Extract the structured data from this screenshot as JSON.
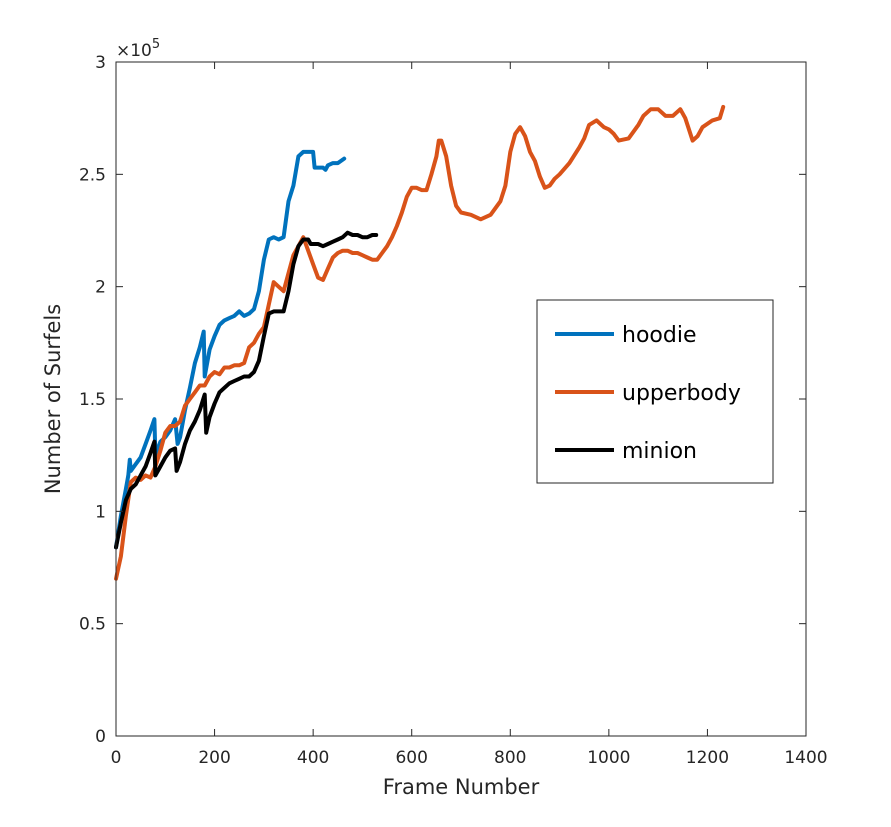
{
  "chart_data": {
    "type": "line",
    "xlabel": "Frame Number",
    "ylabel": "Number of Surfels",
    "xlim": [
      0,
      1400
    ],
    "ylim": [
      0,
      3
    ],
    "y_exponent_label": "×10",
    "y_exponent_power": "5",
    "x_ticks": [
      "0",
      "200",
      "400",
      "600",
      "800",
      "1000",
      "1200",
      "1400"
    ],
    "y_ticks": [
      "0",
      "0.5",
      "1",
      "1.5",
      "2",
      "2.5",
      "3"
    ],
    "legend_position": "right",
    "series": [
      {
        "name": "hoodie",
        "color": "#0072BD",
        "points": [
          [
            0,
            0.84
          ],
          [
            10,
            0.98
          ],
          [
            20,
            1.1
          ],
          [
            25,
            1.16
          ],
          [
            28,
            1.23
          ],
          [
            30,
            1.18
          ],
          [
            40,
            1.21
          ],
          [
            50,
            1.24
          ],
          [
            60,
            1.3
          ],
          [
            70,
            1.36
          ],
          [
            78,
            1.41
          ],
          [
            80,
            1.25
          ],
          [
            90,
            1.31
          ],
          [
            100,
            1.33
          ],
          [
            110,
            1.36
          ],
          [
            120,
            1.41
          ],
          [
            125,
            1.3
          ],
          [
            130,
            1.33
          ],
          [
            140,
            1.45
          ],
          [
            150,
            1.55
          ],
          [
            160,
            1.66
          ],
          [
            170,
            1.73
          ],
          [
            178,
            1.8
          ],
          [
            180,
            1.6
          ],
          [
            190,
            1.72
          ],
          [
            200,
            1.78
          ],
          [
            210,
            1.83
          ],
          [
            220,
            1.85
          ],
          [
            230,
            1.86
          ],
          [
            240,
            1.87
          ],
          [
            250,
            1.89
          ],
          [
            260,
            1.87
          ],
          [
            270,
            1.88
          ],
          [
            280,
            1.9
          ],
          [
            290,
            1.98
          ],
          [
            300,
            2.12
          ],
          [
            310,
            2.21
          ],
          [
            320,
            2.22
          ],
          [
            330,
            2.21
          ],
          [
            340,
            2.22
          ],
          [
            350,
            2.38
          ],
          [
            360,
            2.45
          ],
          [
            370,
            2.58
          ],
          [
            380,
            2.6
          ],
          [
            390,
            2.6
          ],
          [
            400,
            2.6
          ],
          [
            403,
            2.53
          ],
          [
            410,
            2.53
          ],
          [
            420,
            2.53
          ],
          [
            425,
            2.52
          ],
          [
            430,
            2.54
          ],
          [
            440,
            2.55
          ],
          [
            450,
            2.55
          ],
          [
            463,
            2.57
          ]
        ]
      },
      {
        "name": "upperbody",
        "color": "#D95319",
        "points": [
          [
            0,
            0.7
          ],
          [
            10,
            0.8
          ],
          [
            20,
            0.98
          ],
          [
            30,
            1.13
          ],
          [
            40,
            1.15
          ],
          [
            50,
            1.14
          ],
          [
            60,
            1.16
          ],
          [
            70,
            1.15
          ],
          [
            80,
            1.2
          ],
          [
            90,
            1.27
          ],
          [
            100,
            1.35
          ],
          [
            110,
            1.38
          ],
          [
            120,
            1.38
          ],
          [
            130,
            1.4
          ],
          [
            140,
            1.47
          ],
          [
            150,
            1.5
          ],
          [
            160,
            1.53
          ],
          [
            170,
            1.56
          ],
          [
            180,
            1.56
          ],
          [
            190,
            1.6
          ],
          [
            200,
            1.62
          ],
          [
            210,
            1.61
          ],
          [
            220,
            1.64
          ],
          [
            230,
            1.64
          ],
          [
            240,
            1.65
          ],
          [
            250,
            1.65
          ],
          [
            260,
            1.66
          ],
          [
            270,
            1.73
          ],
          [
            280,
            1.75
          ],
          [
            290,
            1.79
          ],
          [
            300,
            1.82
          ],
          [
            310,
            1.92
          ],
          [
            320,
            2.02
          ],
          [
            330,
            2.0
          ],
          [
            340,
            1.98
          ],
          [
            350,
            2.06
          ],
          [
            360,
            2.14
          ],
          [
            370,
            2.18
          ],
          [
            380,
            2.22
          ],
          [
            390,
            2.16
          ],
          [
            400,
            2.1
          ],
          [
            410,
            2.04
          ],
          [
            420,
            2.03
          ],
          [
            430,
            2.08
          ],
          [
            440,
            2.13
          ],
          [
            450,
            2.15
          ],
          [
            460,
            2.16
          ],
          [
            470,
            2.16
          ],
          [
            480,
            2.15
          ],
          [
            490,
            2.15
          ],
          [
            500,
            2.14
          ],
          [
            510,
            2.13
          ],
          [
            520,
            2.12
          ],
          [
            530,
            2.12
          ],
          [
            540,
            2.15
          ],
          [
            550,
            2.18
          ],
          [
            560,
            2.22
          ],
          [
            570,
            2.27
          ],
          [
            580,
            2.33
          ],
          [
            590,
            2.4
          ],
          [
            600,
            2.44
          ],
          [
            610,
            2.44
          ],
          [
            620,
            2.43
          ],
          [
            630,
            2.43
          ],
          [
            640,
            2.5
          ],
          [
            650,
            2.58
          ],
          [
            655,
            2.65
          ],
          [
            660,
            2.65
          ],
          [
            670,
            2.58
          ],
          [
            680,
            2.45
          ],
          [
            690,
            2.36
          ],
          [
            700,
            2.33
          ],
          [
            720,
            2.32
          ],
          [
            740,
            2.3
          ],
          [
            760,
            2.32
          ],
          [
            780,
            2.38
          ],
          [
            790,
            2.45
          ],
          [
            800,
            2.6
          ],
          [
            810,
            2.68
          ],
          [
            820,
            2.71
          ],
          [
            830,
            2.67
          ],
          [
            840,
            2.6
          ],
          [
            850,
            2.56
          ],
          [
            860,
            2.49
          ],
          [
            870,
            2.44
          ],
          [
            880,
            2.45
          ],
          [
            890,
            2.48
          ],
          [
            900,
            2.5
          ],
          [
            920,
            2.55
          ],
          [
            940,
            2.62
          ],
          [
            950,
            2.66
          ],
          [
            960,
            2.72
          ],
          [
            975,
            2.74
          ],
          [
            990,
            2.71
          ],
          [
            1000,
            2.7
          ],
          [
            1010,
            2.68
          ],
          [
            1020,
            2.65
          ],
          [
            1040,
            2.66
          ],
          [
            1060,
            2.72
          ],
          [
            1070,
            2.76
          ],
          [
            1085,
            2.79
          ],
          [
            1100,
            2.79
          ],
          [
            1115,
            2.76
          ],
          [
            1130,
            2.76
          ],
          [
            1145,
            2.79
          ],
          [
            1155,
            2.75
          ],
          [
            1170,
            2.65
          ],
          [
            1180,
            2.67
          ],
          [
            1190,
            2.71
          ],
          [
            1210,
            2.74
          ],
          [
            1225,
            2.75
          ],
          [
            1232,
            2.8
          ]
        ]
      },
      {
        "name": "minion",
        "color": "#000000",
        "points": [
          [
            0,
            0.84
          ],
          [
            10,
            0.95
          ],
          [
            20,
            1.05
          ],
          [
            30,
            1.1
          ],
          [
            40,
            1.12
          ],
          [
            50,
            1.16
          ],
          [
            60,
            1.2
          ],
          [
            70,
            1.26
          ],
          [
            78,
            1.31
          ],
          [
            80,
            1.16
          ],
          [
            90,
            1.2
          ],
          [
            100,
            1.24
          ],
          [
            110,
            1.27
          ],
          [
            120,
            1.28
          ],
          [
            123,
            1.18
          ],
          [
            130,
            1.22
          ],
          [
            140,
            1.3
          ],
          [
            150,
            1.36
          ],
          [
            160,
            1.4
          ],
          [
            170,
            1.45
          ],
          [
            180,
            1.52
          ],
          [
            183,
            1.35
          ],
          [
            190,
            1.42
          ],
          [
            200,
            1.48
          ],
          [
            210,
            1.53
          ],
          [
            220,
            1.55
          ],
          [
            230,
            1.57
          ],
          [
            240,
            1.58
          ],
          [
            250,
            1.59
          ],
          [
            260,
            1.6
          ],
          [
            270,
            1.6
          ],
          [
            280,
            1.62
          ],
          [
            290,
            1.67
          ],
          [
            300,
            1.78
          ],
          [
            310,
            1.88
          ],
          [
            320,
            1.89
          ],
          [
            330,
            1.89
          ],
          [
            340,
            1.89
          ],
          [
            350,
            1.98
          ],
          [
            360,
            2.1
          ],
          [
            370,
            2.18
          ],
          [
            380,
            2.21
          ],
          [
            390,
            2.21
          ],
          [
            395,
            2.19
          ],
          [
            400,
            2.19
          ],
          [
            410,
            2.19
          ],
          [
            420,
            2.18
          ],
          [
            430,
            2.19
          ],
          [
            440,
            2.2
          ],
          [
            450,
            2.21
          ],
          [
            460,
            2.22
          ],
          [
            470,
            2.24
          ],
          [
            480,
            2.23
          ],
          [
            490,
            2.23
          ],
          [
            500,
            2.22
          ],
          [
            510,
            2.22
          ],
          [
            520,
            2.23
          ],
          [
            528,
            2.23
          ]
        ]
      }
    ]
  }
}
